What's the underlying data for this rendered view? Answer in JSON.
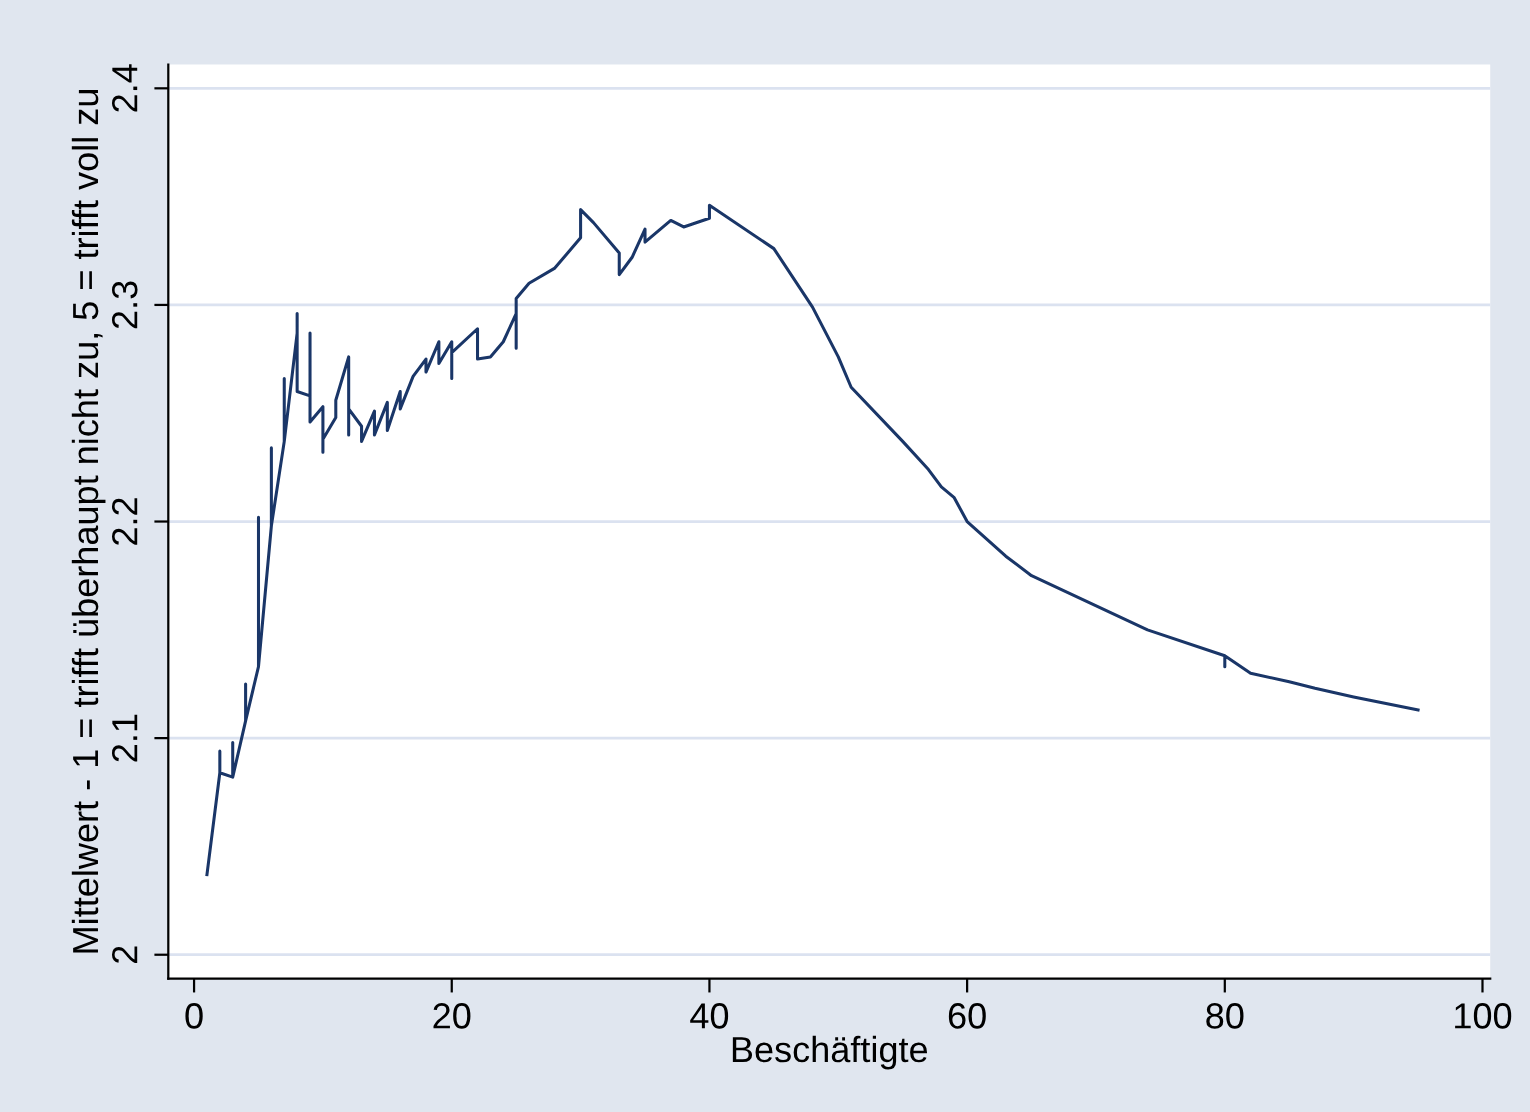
{
  "chart_data": {
    "type": "line",
    "xlabel": "Beschäftigte",
    "ylabel": "Mittelwert - 1 = trifft überhaupt nicht zu, 5 = trifft voll zu",
    "xlim": [
      -2,
      100.6
    ],
    "xticks": [
      0,
      20,
      40,
      60,
      80,
      100
    ],
    "ylim": [
      1.989,
      2.411
    ],
    "yticks": [
      2,
      2.1,
      2.2,
      2.3,
      2.4
    ],
    "grid": "y",
    "legend": false,
    "marker": "none",
    "line_style": "solid",
    "series": [
      {
        "color": "#1a3668",
        "x": [
          1,
          2,
          2,
          2,
          3,
          3,
          3,
          4,
          4,
          4,
          5,
          5,
          5,
          6,
          6,
          6,
          7,
          7,
          7,
          8,
          8,
          8,
          9,
          9,
          9,
          10,
          10,
          10,
          11,
          11,
          12,
          12,
          12,
          13,
          13,
          14,
          14,
          15,
          15,
          16,
          16,
          17,
          18,
          18,
          19,
          19,
          20,
          20,
          20,
          22,
          22,
          23,
          24,
          25,
          25,
          25,
          26,
          28,
          30,
          30,
          31,
          33,
          33,
          34,
          35,
          35,
          37,
          38,
          40,
          40,
          45,
          48,
          50,
          51,
          55,
          57,
          58,
          59,
          60,
          63,
          65,
          74,
          80,
          80,
          80,
          82,
          85,
          87,
          90,
          95
        ],
        "values": [
          2.037,
          2.084,
          2.094,
          2.084,
          2.082,
          2.098,
          2.082,
          2.108,
          2.125,
          2.108,
          2.133,
          2.202,
          2.133,
          2.198,
          2.234,
          2.198,
          2.237,
          2.266,
          2.237,
          2.287,
          2.296,
          2.26,
          2.258,
          2.287,
          2.246,
          2.253,
          2.232,
          2.238,
          2.248,
          2.256,
          2.276,
          2.24,
          2.252,
          2.244,
          2.237,
          2.251,
          2.24,
          2.255,
          2.242,
          2.26,
          2.252,
          2.267,
          2.275,
          2.269,
          2.283,
          2.273,
          2.283,
          2.266,
          2.278,
          2.289,
          2.275,
          2.276,
          2.283,
          2.296,
          2.28,
          2.303,
          2.31,
          2.317,
          2.331,
          2.344,
          2.338,
          2.324,
          2.314,
          2.322,
          2.335,
          2.329,
          2.339,
          2.336,
          2.34,
          2.346,
          2.326,
          2.299,
          2.276,
          2.262,
          2.237,
          2.224,
          2.216,
          2.211,
          2.2,
          2.184,
          2.175,
          2.15,
          2.138,
          2.133,
          2.138,
          2.13,
          2.126,
          2.123,
          2.119,
          2.113
        ]
      }
    ]
  }
}
